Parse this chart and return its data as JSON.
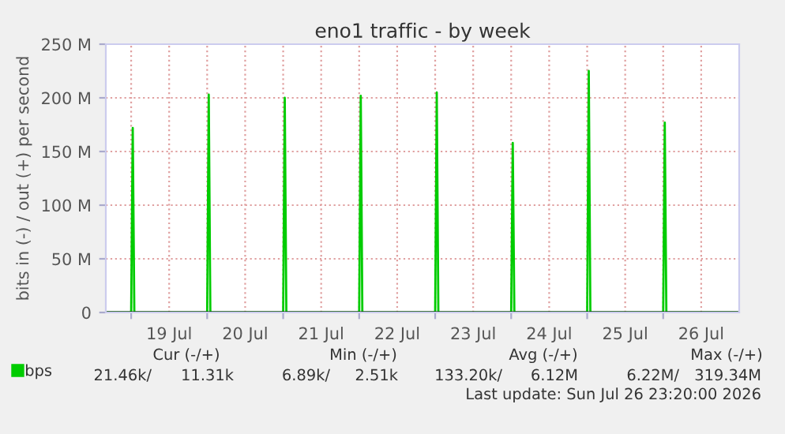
{
  "chart_data": {
    "type": "line",
    "title": "eno1 traffic - by week",
    "ylabel": "bits in (-) / out (+) per second",
    "x": [
      "2026-07-18T16:00",
      "2026-07-19T00:00",
      "2026-07-19T00:30",
      "2026-07-19T01:00",
      "2026-07-20T00:00",
      "2026-07-20T00:30",
      "2026-07-20T01:00",
      "2026-07-21T00:00",
      "2026-07-21T00:30",
      "2026-07-21T01:00",
      "2026-07-22T00:00",
      "2026-07-22T00:30",
      "2026-07-22T01:00",
      "2026-07-23T00:00",
      "2026-07-23T00:30",
      "2026-07-23T01:00",
      "2026-07-24T00:00",
      "2026-07-24T00:30",
      "2026-07-24T01:00",
      "2026-07-25T00:00",
      "2026-07-25T00:30",
      "2026-07-25T01:00",
      "2026-07-26T00:00",
      "2026-07-26T00:30",
      "2026-07-26T01:00",
      "2026-07-26T23:20"
    ],
    "series": [
      {
        "name": "bps",
        "color": "#00cc00",
        "values": [
          0,
          0,
          172,
          0,
          0,
          203,
          0,
          0,
          200,
          0,
          0,
          202,
          0,
          0,
          205,
          0,
          0,
          158,
          0,
          0,
          225,
          0,
          0,
          177,
          0,
          0
        ]
      }
    ],
    "xlim": [
      "2026-07-18T16:00",
      "2026-07-27T00:00"
    ],
    "xticks": [
      {
        "value": "2026-07-19T00:00",
        "label": null
      },
      {
        "value": "2026-07-19T12:00",
        "label": "19 Jul"
      },
      {
        "value": "2026-07-20T00:00",
        "label": null
      },
      {
        "value": "2026-07-20T12:00",
        "label": "20 Jul"
      },
      {
        "value": "2026-07-21T00:00",
        "label": null
      },
      {
        "value": "2026-07-21T12:00",
        "label": "21 Jul"
      },
      {
        "value": "2026-07-22T00:00",
        "label": null
      },
      {
        "value": "2026-07-22T12:00",
        "label": "22 Jul"
      },
      {
        "value": "2026-07-23T00:00",
        "label": null
      },
      {
        "value": "2026-07-23T12:00",
        "label": "23 Jul"
      },
      {
        "value": "2026-07-24T00:00",
        "label": null
      },
      {
        "value": "2026-07-24T12:00",
        "label": "24 Jul"
      },
      {
        "value": "2026-07-25T00:00",
        "label": null
      },
      {
        "value": "2026-07-25T12:00",
        "label": "25 Jul"
      },
      {
        "value": "2026-07-26T00:00",
        "label": null
      },
      {
        "value": "2026-07-26T12:00",
        "label": "26 Jul"
      }
    ],
    "ylim": [
      0,
      250
    ],
    "yticks": [
      0,
      {
        "value": 50,
        "label": "50 M"
      },
      {
        "value": 100,
        "label": "100 M"
      },
      {
        "value": 150,
        "label": "150 M"
      },
      {
        "value": 200,
        "label": "200 M"
      },
      {
        "value": 250,
        "label": "250 M"
      }
    ],
    "grid": true,
    "legend": "bottom left",
    "marker": "none",
    "line_style": "solid",
    "annotations": [
      "Cur (-/+)",
      "Min (-/+)",
      "Avg (-/+)",
      "Max (-/+)",
      "21.46k/",
      "11.31k",
      "6.89k/",
      "2.51k",
      "133.20k/",
      "6.12M",
      "6.22M/",
      "319.34M",
      "Last update: Sun Jul 26 23:20:00 2026"
    ]
  }
}
